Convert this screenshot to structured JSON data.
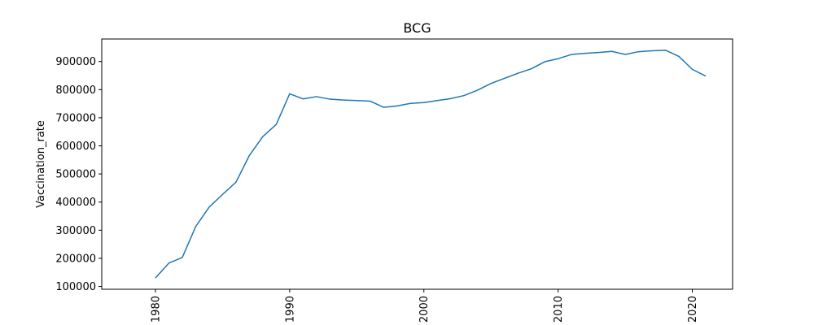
{
  "chart_data": {
    "type": "line",
    "title": "BCG",
    "xlabel": "",
    "ylabel": "Vaccination_rate",
    "xlim": [
      1976,
      2023
    ],
    "ylim": [
      90000,
      980000
    ],
    "x_ticks": [
      1980,
      1990,
      2000,
      2010,
      2020
    ],
    "y_ticks": [
      100000,
      200000,
      300000,
      400000,
      500000,
      600000,
      700000,
      800000,
      900000
    ],
    "grid": false,
    "series_color": "#1f77b4",
    "series": [
      {
        "x": [
          1980,
          1981,
          1982,
          1983,
          1984,
          1985,
          1986,
          1987,
          1988,
          1989,
          1990,
          1991,
          1992,
          1993,
          1994,
          1995,
          1996,
          1997,
          1998,
          1999,
          2000,
          2001,
          2002,
          2003,
          2004,
          2005,
          2006,
          2007,
          2008,
          2009,
          2010,
          2011,
          2012,
          2013,
          2014,
          2015,
          2016,
          2017,
          2018,
          2019,
          2020,
          2021
        ],
        "values": [
          130000,
          183000,
          203000,
          313000,
          382000,
          427000,
          471000,
          566000,
          633000,
          676000,
          785000,
          767000,
          775000,
          766000,
          763000,
          761000,
          759000,
          737000,
          742000,
          751000,
          754000,
          761000,
          768000,
          779000,
          798000,
          822000,
          840000,
          858000,
          874000,
          899000,
          910000,
          925000,
          929000,
          932000,
          936000,
          925000,
          935000,
          938000,
          940000,
          918000,
          872000,
          848000
        ]
      }
    ]
  }
}
